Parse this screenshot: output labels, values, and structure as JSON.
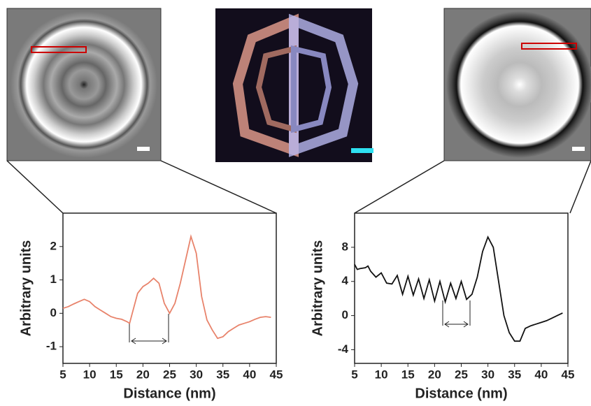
{
  "chart_data": [
    {
      "type": "line",
      "xlabel": "Distance (nm)",
      "ylabel": "Arbitrary units",
      "color": "#e8836b",
      "xlim": [
        5,
        45
      ],
      "xticks": [
        5,
        10,
        15,
        20,
        25,
        30,
        35,
        40,
        45
      ],
      "ylim": [
        -1.5,
        3
      ],
      "yticks": [
        -1,
        0,
        1,
        2
      ],
      "x": [
        5,
        6,
        7,
        8,
        9,
        10,
        11,
        12,
        13,
        14,
        15,
        16,
        17,
        17.5,
        18,
        19,
        20,
        21,
        22,
        23,
        24,
        25,
        26,
        27,
        28,
        29,
        30,
        31,
        32,
        33,
        34,
        35,
        36,
        37,
        38,
        39,
        40,
        41,
        42,
        43,
        44
      ],
      "values": [
        0.15,
        0.2,
        0.28,
        0.35,
        0.42,
        0.35,
        0.2,
        0.1,
        0.0,
        -0.1,
        -0.15,
        -0.18,
        -0.25,
        -0.3,
        0.0,
        0.6,
        0.8,
        0.9,
        1.05,
        0.9,
        0.3,
        0.0,
        0.3,
        0.9,
        1.6,
        2.3,
        1.8,
        0.5,
        -0.2,
        -0.5,
        -0.75,
        -0.7,
        -0.55,
        -0.45,
        -0.35,
        -0.3,
        -0.25,
        -0.18,
        -0.12,
        -0.1,
        -0.12
      ]
    },
    {
      "type": "line",
      "xlabel": "Distance (nm)",
      "ylabel": "Arbitrary units",
      "color": "#111111",
      "xlim": [
        5,
        45
      ],
      "xticks": [
        5,
        10,
        15,
        20,
        25,
        30,
        35,
        40,
        45
      ],
      "ylim": [
        -5.6,
        12
      ],
      "yticks": [
        -4,
        0,
        4,
        8
      ],
      "x": [
        5,
        5.5,
        6,
        7,
        7.5,
        8,
        9,
        10,
        11,
        12,
        13,
        14,
        15,
        16,
        17,
        18,
        19,
        20,
        21,
        22,
        23,
        24,
        25,
        26,
        27,
        28,
        29,
        30,
        31,
        32,
        33,
        34,
        35,
        36,
        37,
        38,
        39,
        40,
        41,
        42,
        43,
        44
      ],
      "values": [
        6,
        5.4,
        5.5,
        5.6,
        5.8,
        5.2,
        4.5,
        5,
        3.8,
        3.7,
        4.7,
        2.5,
        4.6,
        2.4,
        4.3,
        2.0,
        4.2,
        1.7,
        4.0,
        1.6,
        3.8,
        2.0,
        4.0,
        1.9,
        2.5,
        4.5,
        7.5,
        9.2,
        8,
        4,
        0,
        -2,
        -3,
        -3,
        -1.5,
        -1.2,
        -1,
        -0.8,
        -0.6,
        -0.3,
        0,
        0.3
      ]
    }
  ]
}
